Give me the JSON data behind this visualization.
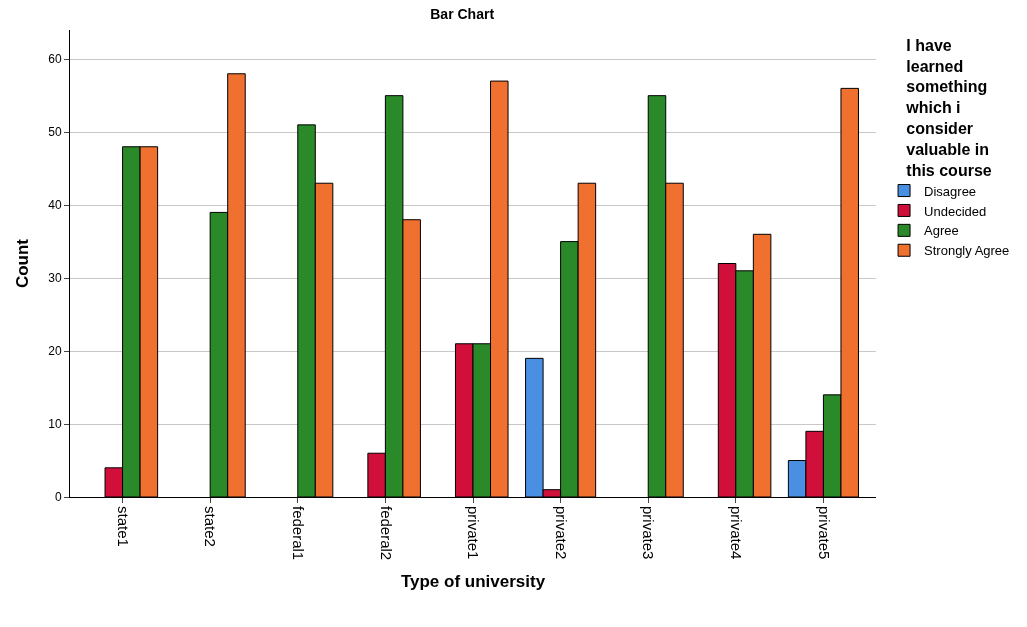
{
  "chart_data": {
    "type": "bar",
    "title": "Bar Chart",
    "xlabel": "Type of university",
    "ylabel": "Count",
    "legend_title": "I have learned something which i consider valuable in this course",
    "categories": [
      "state1",
      "state2",
      "federal1",
      "federal2",
      "private1",
      "private2",
      "private3",
      "private4",
      "private5"
    ],
    "series": [
      {
        "name": "Disagree",
        "color": "#4a90e2",
        "values": [
          null,
          null,
          null,
          null,
          null,
          19,
          null,
          null,
          5
        ]
      },
      {
        "name": "Undecided",
        "color": "#d0103a",
        "values": [
          4,
          null,
          null,
          6,
          21,
          1,
          null,
          32,
          9
        ]
      },
      {
        "name": "Agree",
        "color": "#2a8a2a",
        "values": [
          48,
          39,
          51,
          55,
          21,
          35,
          55,
          31,
          14
        ]
      },
      {
        "name": "Strongly Agree",
        "color": "#f07030",
        "values": [
          48,
          58,
          43,
          38,
          57,
          43,
          43,
          36,
          56
        ]
      }
    ],
    "ylim": [
      0,
      64
    ],
    "yticks": [
      0,
      10,
      20,
      30,
      40,
      50,
      60
    ],
    "grid": "y",
    "legend": "right"
  }
}
